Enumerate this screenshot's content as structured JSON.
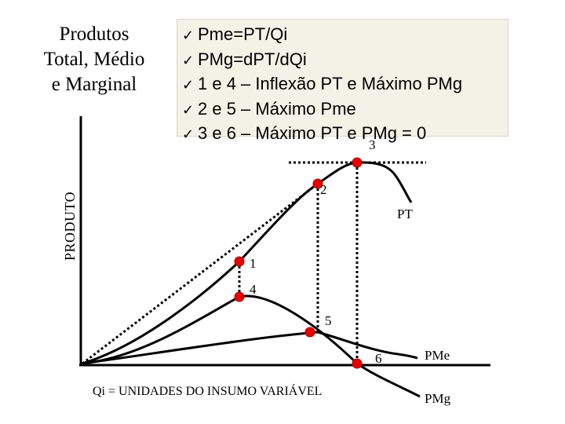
{
  "title": {
    "line1": "Produtos",
    "line2": "Total, Médio",
    "line3": "e Marginal"
  },
  "notes": [
    "Pme=PT/Qi",
    "PMg=dPT/dQi",
    "1 e 4 – Inflexão PT e Máximo PMg",
    "2 e 5 – Máximo Pme",
    "3 e 6 – Máximo PT e PMg = 0"
  ],
  "axes": {
    "ylabel": "PRODUTO",
    "xlabel": "Qi = UNIDADES DO INSUMO VARIÁVEL"
  },
  "curves": {
    "pt": "PT",
    "pme": "PMe",
    "pmg": "PMg"
  },
  "points": [
    "1",
    "2",
    "3",
    "4",
    "5",
    "6"
  ],
  "colors": {
    "point": "#e60000",
    "note_bg": "#f2f2e6",
    "line": "#000000"
  }
}
